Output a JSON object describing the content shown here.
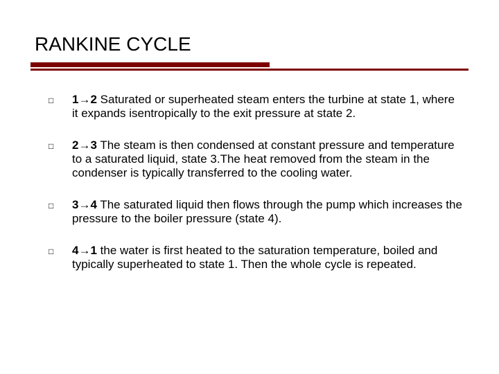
{
  "background_color": "#ffffff",
  "text_color": "#000000",
  "rule_color": "#7d0000",
  "title_fontsize": 28,
  "body_fontsize": 17,
  "bullet_glyph": "□",
  "title": "RANKINE CYCLE",
  "items": [
    {
      "lead": "1→2",
      "body": " Saturated or superheated steam enters the turbine at state 1, where it expands isentropically to the exit pressure at state 2."
    },
    {
      "lead": "2→3",
      "body": " The steam is then condensed at constant pressure and temperature to a saturated liquid, state 3.The heat removed from the steam in the condenser is typically transferred to the cooling water."
    },
    {
      "lead": "3→4",
      "body": " The saturated liquid then flows through the pump which increases the pressure to the boiler pressure (state 4)."
    },
    {
      "lead": "4→1",
      "body": " the water is first heated to the saturation temperature, boiled and typically superheated to state 1. Then the whole cycle is repeated."
    }
  ]
}
